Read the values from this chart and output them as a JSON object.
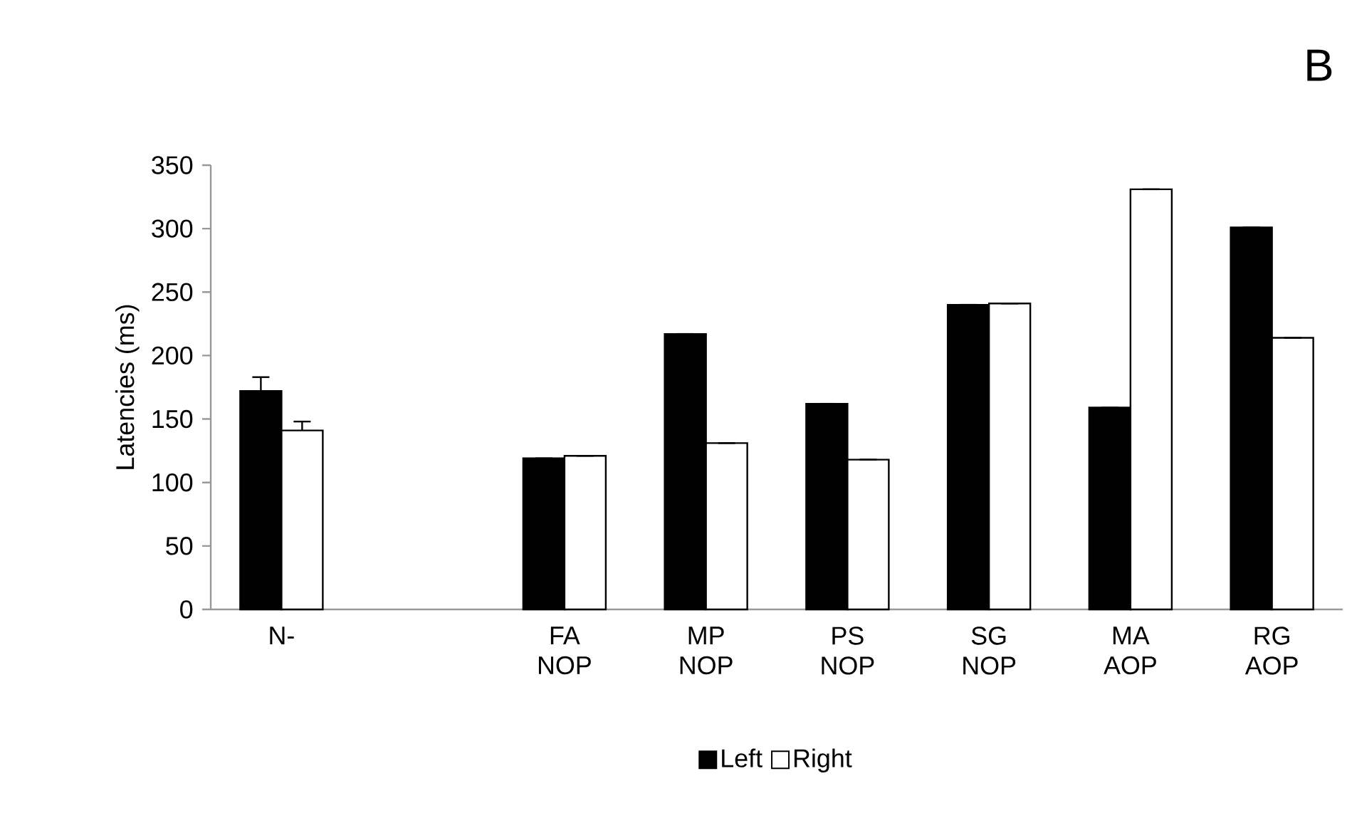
{
  "chart_data": {
    "type": "bar",
    "ylabel": "Latencies (ms)",
    "categories": [
      "N-",
      null,
      "FA NOP",
      "MP NOP",
      "PS NOP",
      "SG NOP",
      "MA AOP",
      "RG AOP"
    ],
    "series": [
      {
        "name": "Left",
        "color": "#000000",
        "values": [
          172,
          null,
          119,
          217,
          162,
          240,
          159,
          301
        ],
        "errors": [
          11,
          null,
          null,
          null,
          null,
          null,
          null,
          null
        ]
      },
      {
        "name": "Right",
        "color": "#ffffff",
        "values": [
          141,
          null,
          121,
          131,
          118,
          241,
          331,
          214
        ],
        "errors": [
          7,
          null,
          null,
          null,
          null,
          null,
          null,
          null
        ]
      }
    ],
    "ylim": [
      0,
      350
    ],
    "yticks": [
      0,
      50,
      100,
      150,
      200,
      250,
      300,
      350
    ],
    "legend": "bottom",
    "grid": false,
    "annotations": [
      "B"
    ]
  }
}
